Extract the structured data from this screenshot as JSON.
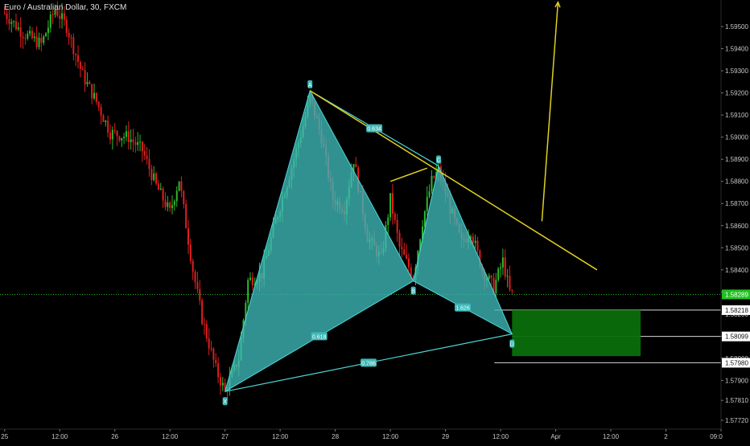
{
  "chart_data": {
    "type": "candlestick",
    "title": "Euro / Australian Dollar, 30, FXCM",
    "colors": {
      "background": "#000000",
      "up_candle": "#2eb82e",
      "down_candle": "#e01e1e",
      "pattern_fill": "#3fb8b8",
      "pattern_line": "#4dd6d6",
      "projection_line": "#e0d020",
      "current_price_line": "#20c020",
      "target_zone": "#0a6e0a",
      "axis_text": "#c8c8c8",
      "price_tag_bg": "#ffffff"
    },
    "y_axis": {
      "range": [
        1.5768,
        1.5962
      ],
      "tick_labels": [
        "1.59500",
        "1.59400",
        "1.59300",
        "1.59200",
        "1.59100",
        "1.59000",
        "1.58900",
        "1.58800",
        "1.58700",
        "1.58600",
        "1.58500",
        "1.58400",
        "1.58300",
        "1.58200",
        "1.58100",
        "1.58000",
        "1.57900",
        "1.57810",
        "1.57720"
      ]
    },
    "x_axis": {
      "tick_labels": [
        "25",
        "12:00",
        "26",
        "12:00",
        "27",
        "12:00",
        "28",
        "12:00",
        "29",
        "12:00",
        "Apr",
        "12:00",
        "2",
        "09:0"
      ],
      "tick_positions": [
        0,
        24,
        48,
        72,
        96,
        120,
        144,
        168,
        192,
        216,
        240,
        264,
        288,
        312
      ],
      "range": [
        -2,
        312
      ]
    },
    "pattern": {
      "name": "harmonic-pattern",
      "points": [
        {
          "label": "X",
          "t": 96,
          "price": 1.5785
        },
        {
          "label": "A",
          "t": 133,
          "price": 1.5921
        },
        {
          "label": "B",
          "t": 178,
          "price": 1.5835
        },
        {
          "label": "C",
          "t": 189,
          "price": 1.5887
        },
        {
          "label": "D",
          "t": 221,
          "price": 1.5811
        }
      ],
      "ratios": [
        {
          "value": "0.634",
          "between": [
            "A",
            "C"
          ]
        },
        {
          "value": "0.618",
          "between": [
            "X",
            "B"
          ]
        },
        {
          "value": "1.626",
          "between": [
            "B",
            "D"
          ]
        },
        {
          "value": "0.786",
          "between": [
            "X",
            "D"
          ]
        }
      ]
    },
    "projection_lines": [
      {
        "from": {
          "t": 133,
          "price": 1.5921
        },
        "to": {
          "t": 258,
          "price": 1.584
        }
      },
      {
        "from": {
          "t": 168,
          "price": 1.588
        },
        "to": {
          "t": 184,
          "price": 1.5886
        }
      },
      {
        "from": {
          "t": 234,
          "price": 1.5862
        },
        "to": {
          "t": 241,
          "price": 1.5961
        },
        "arrow": true
      }
    ],
    "current_price": {
      "value": 1.58289,
      "label": "1.58289"
    },
    "price_levels": [
      {
        "value": 1.58218,
        "label": "1.58218"
      },
      {
        "value": 1.58099,
        "label": "1.58099"
      },
      {
        "value": 1.5798,
        "label": "1.57980"
      }
    ],
    "target_zone": {
      "t_start": 221,
      "t_end": 277,
      "price_top": 1.58218,
      "price_bottom": 1.5801
    },
    "series_keypoints": [
      {
        "t": 0,
        "price": 1.5956
      },
      {
        "t": 8,
        "price": 1.5947
      },
      {
        "t": 16,
        "price": 1.5942
      },
      {
        "t": 22,
        "price": 1.5958
      },
      {
        "t": 27,
        "price": 1.595
      },
      {
        "t": 34,
        "price": 1.5928
      },
      {
        "t": 40,
        "price": 1.5916
      },
      {
        "t": 46,
        "price": 1.5902
      },
      {
        "t": 54,
        "price": 1.59
      },
      {
        "t": 60,
        "price": 1.5894
      },
      {
        "t": 66,
        "price": 1.5878
      },
      {
        "t": 72,
        "price": 1.5866
      },
      {
        "t": 76,
        "price": 1.5881
      },
      {
        "t": 82,
        "price": 1.584
      },
      {
        "t": 86,
        "price": 1.5818
      },
      {
        "t": 92,
        "price": 1.5795
      },
      {
        "t": 96,
        "price": 1.5785
      },
      {
        "t": 102,
        "price": 1.58
      },
      {
        "t": 106,
        "price": 1.5835
      },
      {
        "t": 112,
        "price": 1.5838
      },
      {
        "t": 118,
        "price": 1.5862
      },
      {
        "t": 124,
        "price": 1.5883
      },
      {
        "t": 130,
        "price": 1.5905
      },
      {
        "t": 133,
        "price": 1.5918
      },
      {
        "t": 138,
        "price": 1.59
      },
      {
        "t": 143,
        "price": 1.5872
      },
      {
        "t": 148,
        "price": 1.5868
      },
      {
        "t": 152,
        "price": 1.589
      },
      {
        "t": 158,
        "price": 1.5855
      },
      {
        "t": 164,
        "price": 1.5845
      },
      {
        "t": 168,
        "price": 1.5872
      },
      {
        "t": 172,
        "price": 1.585
      },
      {
        "t": 178,
        "price": 1.5837
      },
      {
        "t": 182,
        "price": 1.5862
      },
      {
        "t": 186,
        "price": 1.588
      },
      {
        "t": 189,
        "price": 1.5885
      },
      {
        "t": 194,
        "price": 1.5868
      },
      {
        "t": 199,
        "price": 1.5852
      },
      {
        "t": 203,
        "price": 1.5858
      },
      {
        "t": 208,
        "price": 1.584
      },
      {
        "t": 213,
        "price": 1.5832
      },
      {
        "t": 217,
        "price": 1.5844
      },
      {
        "t": 220,
        "price": 1.583
      },
      {
        "t": 221,
        "price": 1.5829
      }
    ]
  }
}
